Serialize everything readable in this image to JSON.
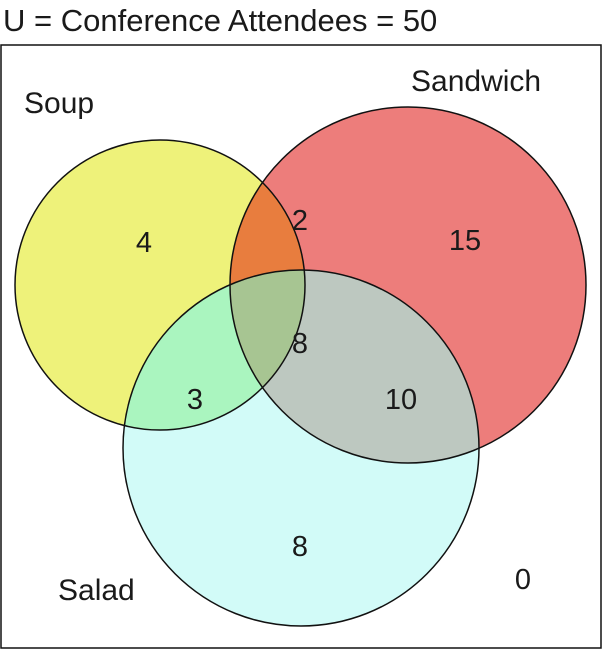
{
  "title": "U = Conference Attendees = 50",
  "sets": {
    "soup": {
      "label": "Soup",
      "color": "#eef27a"
    },
    "sandwich": {
      "label": "Sandwich",
      "color": "#ed7d7b"
    },
    "salad": {
      "label": "Salad",
      "color": "#d2fbf8"
    }
  },
  "overlap_colors": {
    "soup_sandwich": "#e87d3e",
    "soup_salad": "#aaf5bf",
    "sandwich_salad": "#bdc8c0",
    "all": "#a7c592"
  },
  "regions": {
    "soup_only": "4",
    "sandwich_only": "15",
    "salad_only": "8",
    "soup_sandwich": "2",
    "soup_salad": "3",
    "sandwich_salad": "10",
    "all_three": "8",
    "outside": "0"
  }
}
